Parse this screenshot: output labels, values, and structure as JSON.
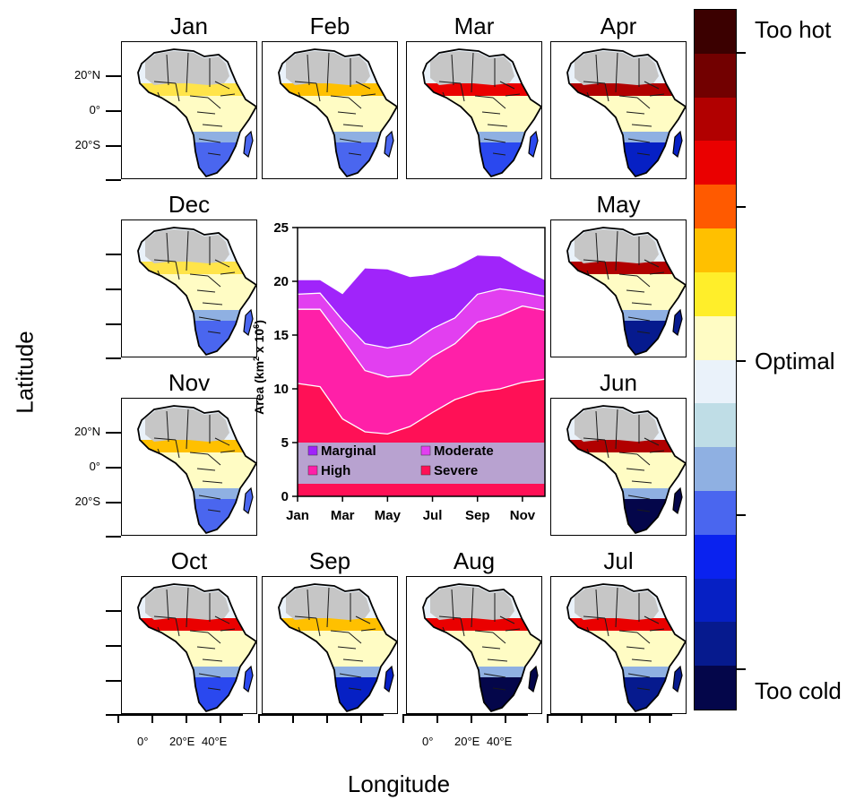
{
  "maps": {
    "months": [
      "Jan",
      "Feb",
      "Mar",
      "Apr",
      "May",
      "Jun",
      "Jul",
      "Aug",
      "Sep",
      "Oct",
      "Nov",
      "Dec"
    ],
    "lat_labels": [
      "20°N",
      "0°",
      "20°S"
    ],
    "lon_labels": [
      "0°",
      "20°E",
      "40°E"
    ],
    "xlabel": "Longitude",
    "ylabel": "Latitude"
  },
  "colorbar": {
    "top_label": "Too hot",
    "middle_label": "Optimal",
    "bottom_label": "Too cold",
    "colors": [
      "#3b0000",
      "#720000",
      "#b10000",
      "#ea0000",
      "#ff5a00",
      "#ffc000",
      "#ffee2a",
      "#fffcc4",
      "#eaf2fa",
      "#bfdde6",
      "#8fb0e2",
      "#4a66ef",
      "#0a22ef",
      "#0620c4",
      "#061a8e",
      "#04064a"
    ]
  },
  "chart_data": {
    "type": "area",
    "categories": [
      "Jan",
      "Feb",
      "Mar",
      "Apr",
      "May",
      "Jun",
      "Jul",
      "Aug",
      "Sep",
      "Oct",
      "Nov",
      "Dec"
    ],
    "x_tick_labels": [
      "Jan",
      "Mar",
      "May",
      "Jul",
      "Sep",
      "Nov"
    ],
    "ylabel": "Area (km² x 10⁶)",
    "ylabel_main": "Area (km",
    "ylabel_sup1": "2",
    "ylabel_mid": " x 10",
    "ylabel_sup2": "6",
    "ylabel_end": ")",
    "ylim": [
      0,
      25
    ],
    "yticks": [
      0,
      5,
      10,
      15,
      20,
      25
    ],
    "series": [
      {
        "name": "Severe",
        "color": "#ff1056",
        "values": [
          10.5,
          10.2,
          7.2,
          6.0,
          5.8,
          6.5,
          7.8,
          9.0,
          9.7,
          10.0,
          10.6,
          10.9
        ]
      },
      {
        "name": "High",
        "color": "#ff20a8",
        "values": [
          6.9,
          7.2,
          7.4,
          5.7,
          5.3,
          4.8,
          5.2,
          5.2,
          6.5,
          6.8,
          7.1,
          6.4
        ]
      },
      {
        "name": "Moderate",
        "color": "#e23ff0",
        "values": [
          1.4,
          1.5,
          1.8,
          2.5,
          2.7,
          2.9,
          2.6,
          2.4,
          2.6,
          2.5,
          1.3,
          1.3
        ]
      },
      {
        "name": "Marginal",
        "color": "#a024fa",
        "values": [
          1.3,
          1.2,
          2.4,
          7.0,
          7.3,
          6.2,
          5.0,
          4.7,
          3.6,
          3.0,
          2.1,
          1.5
        ]
      }
    ],
    "legend": {
      "placement": "bottom",
      "background": "#b8a2d0",
      "entries": [
        {
          "name": "Marginal",
          "color": "#a024fa"
        },
        {
          "name": "Moderate",
          "color": "#e23ff0"
        },
        {
          "name": "High",
          "color": "#ff20a8"
        },
        {
          "name": "Severe",
          "color": "#ff1056"
        }
      ]
    }
  }
}
